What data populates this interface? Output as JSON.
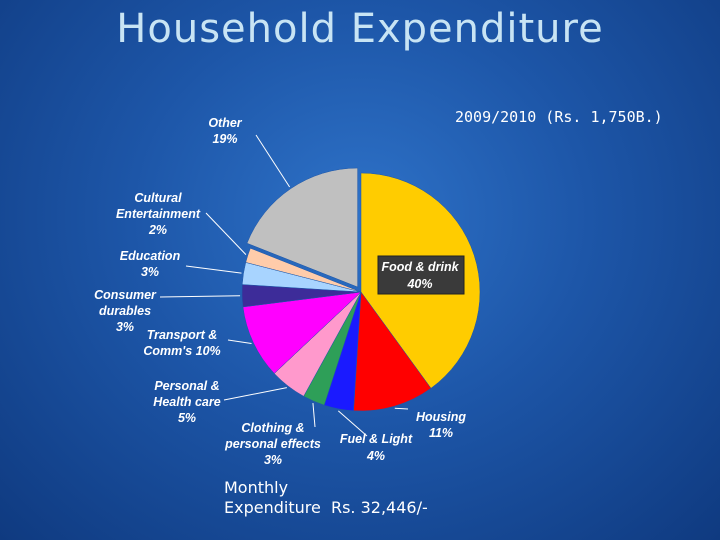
{
  "page": {
    "title": "Household Expenditure",
    "subtitle": "2009/2010 (Rs. 1,750B.)",
    "footer_line1": "Monthly",
    "footer_line2": "Expenditure  Rs. 32,446/-"
  },
  "chart_data": {
    "type": "pie",
    "start_angle_deg": 0,
    "direction": "clockwise",
    "slices": [
      {
        "label_lines": [
          "Food & drink",
          "40%"
        ],
        "value": 40,
        "color": "#ffcc00",
        "exploded": false
      },
      {
        "label_lines": [
          "Housing",
          "11%"
        ],
        "value": 11,
        "color": "#ff0000",
        "exploded": false
      },
      {
        "label_lines": [
          "Fuel & Light",
          "4%"
        ],
        "value": 4,
        "color": "#1a1aff",
        "exploded": false
      },
      {
        "label_lines": [
          "Clothing &",
          "personal effects",
          "3%"
        ],
        "value": 3,
        "color": "#2e9f58",
        "exploded": false
      },
      {
        "label_lines": [
          "Personal &",
          "Health care",
          "5%"
        ],
        "value": 5,
        "color": "#ff99cc",
        "exploded": false
      },
      {
        "label_lines": [
          "Transport &",
          "Comm's 10%"
        ],
        "value": 10,
        "color": "#ff00ff",
        "exploded": false
      },
      {
        "label_lines": [
          "Consumer",
          "durables",
          "3%"
        ],
        "value": 3,
        "color": "#3d2c99",
        "exploded": false
      },
      {
        "label_lines": [
          "Education",
          "3%"
        ],
        "value": 3,
        "color": "#a8d4ff",
        "exploded": false
      },
      {
        "label_lines": [
          "Cultural",
          "Entertainment",
          "2%"
        ],
        "value": 2,
        "color": "#ffccaa",
        "exploded": false
      },
      {
        "label_lines": [
          "Other",
          "19%"
        ],
        "value": 19,
        "color": "#c0c0c0",
        "exploded": true
      }
    ]
  }
}
